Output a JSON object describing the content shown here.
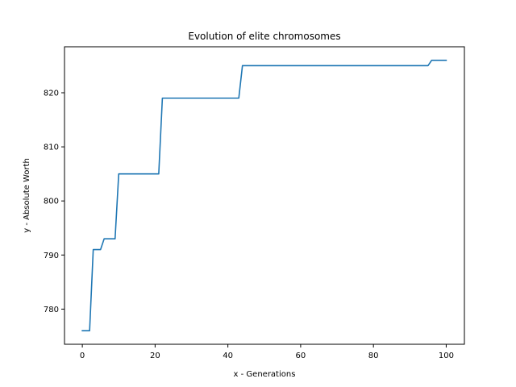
{
  "chart_data": {
    "type": "line",
    "title": "Evolution of elite chromosomes",
    "xlabel": "x - Generations",
    "ylabel": "y - Absolute Worth",
    "xlim": [
      -4.9,
      105
    ],
    "ylim": [
      773.5,
      828.5
    ],
    "xticks": [
      0,
      20,
      40,
      60,
      80,
      100
    ],
    "yticks": [
      780,
      790,
      800,
      810,
      820
    ],
    "grid": false,
    "line_color": "#1f77b4",
    "series": [
      {
        "x": [
          0,
          2,
          3,
          5,
          6,
          9,
          10,
          21,
          22,
          43,
          44,
          95,
          96,
          100
        ],
        "values": [
          776,
          776,
          791,
          791,
          793,
          793,
          805,
          805,
          819,
          819,
          825,
          825,
          826,
          826
        ]
      }
    ]
  }
}
